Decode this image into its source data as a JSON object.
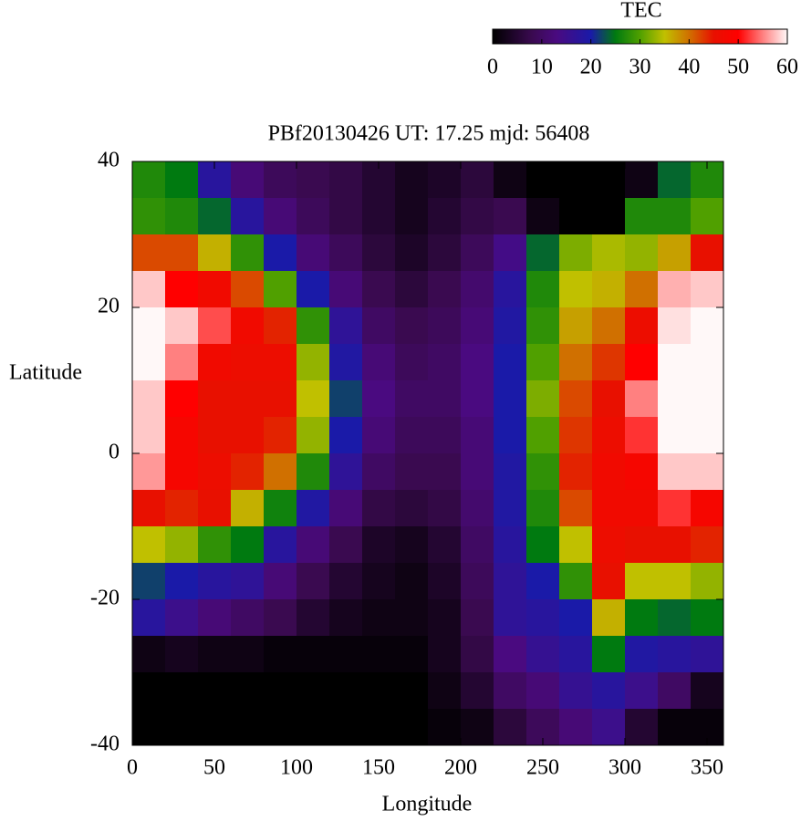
{
  "chart_data": {
    "type": "heatmap",
    "title": "PBf20130426  UT: 17.25  mjd: 56408",
    "x_label": "Longitude",
    "y_label": "Latitude",
    "colorbar_title": "TEC",
    "x": [
      10,
      30,
      50,
      70,
      90,
      110,
      130,
      150,
      170,
      190,
      210,
      230,
      250,
      270,
      290,
      310,
      330,
      350
    ],
    "y": [
      37.5,
      32.5,
      27.5,
      22.5,
      17.5,
      12.5,
      7.5,
      2.5,
      -2.5,
      -7.5,
      -12.5,
      -17.5,
      -22.5,
      -27.5,
      -32.5,
      -37.5
    ],
    "z": [
      [
        27,
        25,
        18,
        12,
        9,
        8,
        7,
        5,
        3,
        4,
        6,
        2,
        0,
        0,
        0,
        2,
        24,
        27
      ],
      [
        28,
        27,
        24,
        18,
        12,
        9,
        7,
        5,
        3,
        5,
        7,
        8,
        2,
        0,
        0,
        27,
        27,
        30
      ],
      [
        42,
        42,
        36,
        28,
        20,
        12,
        9,
        6,
        4,
        6,
        9,
        14,
        24,
        32,
        34,
        33,
        37,
        45
      ],
      [
        58,
        50,
        47,
        42,
        30,
        20,
        12,
        8,
        6,
        8,
        11,
        18,
        27,
        35,
        36,
        40,
        57,
        58
      ],
      [
        60,
        58,
        53,
        47,
        44,
        28,
        17,
        10,
        8,
        9,
        12,
        19,
        28,
        37,
        40,
        46,
        59,
        60
      ],
      [
        60,
        55,
        47,
        46,
        46,
        33,
        19,
        12,
        9,
        10,
        13,
        20,
        30,
        40,
        43,
        50,
        60,
        60
      ],
      [
        58,
        50,
        45,
        45,
        45,
        35,
        22,
        13,
        10,
        10,
        13,
        20,
        32,
        42,
        45,
        55,
        60,
        60
      ],
      [
        58,
        48,
        45,
        45,
        44,
        33,
        20,
        12,
        9,
        9,
        12,
        20,
        30,
        43,
        46,
        52,
        60,
        60
      ],
      [
        56,
        48,
        46,
        44,
        40,
        27,
        17,
        10,
        8,
        8,
        12,
        19,
        28,
        44,
        47,
        48,
        58,
        58
      ],
      [
        45,
        44,
        45,
        36,
        26,
        19,
        12,
        7,
        6,
        7,
        11,
        19,
        27,
        42,
        47,
        47,
        52,
        48
      ],
      [
        35,
        33,
        28,
        25,
        18,
        12,
        8,
        4,
        3,
        5,
        10,
        18,
        25,
        35,
        46,
        45,
        45,
        44
      ],
      [
        22,
        20,
        18,
        17,
        12,
        8,
        5,
        3,
        2,
        4,
        9,
        17,
        20,
        28,
        45,
        35,
        35,
        33
      ],
      [
        18,
        15,
        12,
        10,
        8,
        5,
        3,
        2,
        2,
        3,
        8,
        17,
        18,
        20,
        36,
        25,
        24,
        25
      ],
      [
        2,
        3,
        2,
        2,
        1,
        1,
        1,
        1,
        1,
        3,
        7,
        13,
        16,
        18,
        25,
        19,
        18,
        17
      ],
      [
        0,
        0,
        0,
        0,
        0,
        0,
        0,
        0,
        0,
        2,
        5,
        10,
        12,
        16,
        18,
        15,
        10,
        3
      ],
      [
        0,
        0,
        0,
        0,
        0,
        0,
        0,
        0,
        0,
        1,
        2,
        6,
        9,
        12,
        15,
        5,
        1,
        1
      ]
    ],
    "xlim": [
      0,
      360
    ],
    "xticks": [
      0,
      50,
      100,
      150,
      200,
      250,
      300,
      350
    ],
    "ylim": [
      -40,
      40
    ],
    "yticks": [
      -40,
      -20,
      0,
      20,
      40
    ],
    "clim": [
      0,
      60
    ],
    "cticks": [
      0,
      10,
      20,
      30,
      40,
      50,
      60
    ],
    "colormap": [
      {
        "value": 0,
        "color": "#000000"
      },
      {
        "value": 8,
        "color": "#3a0a50"
      },
      {
        "value": 13,
        "color": "#4a0a80"
      },
      {
        "value": 20,
        "color": "#1a1aa8"
      },
      {
        "value": 25,
        "color": "#007a10"
      },
      {
        "value": 30,
        "color": "#50a000"
      },
      {
        "value": 35,
        "color": "#c0c000"
      },
      {
        "value": 40,
        "color": "#d07000"
      },
      {
        "value": 45,
        "color": "#e81000"
      },
      {
        "value": 50,
        "color": "#ff0000"
      },
      {
        "value": 55,
        "color": "#ff8080"
      },
      {
        "value": 60,
        "color": "#fff8f8"
      }
    ]
  }
}
